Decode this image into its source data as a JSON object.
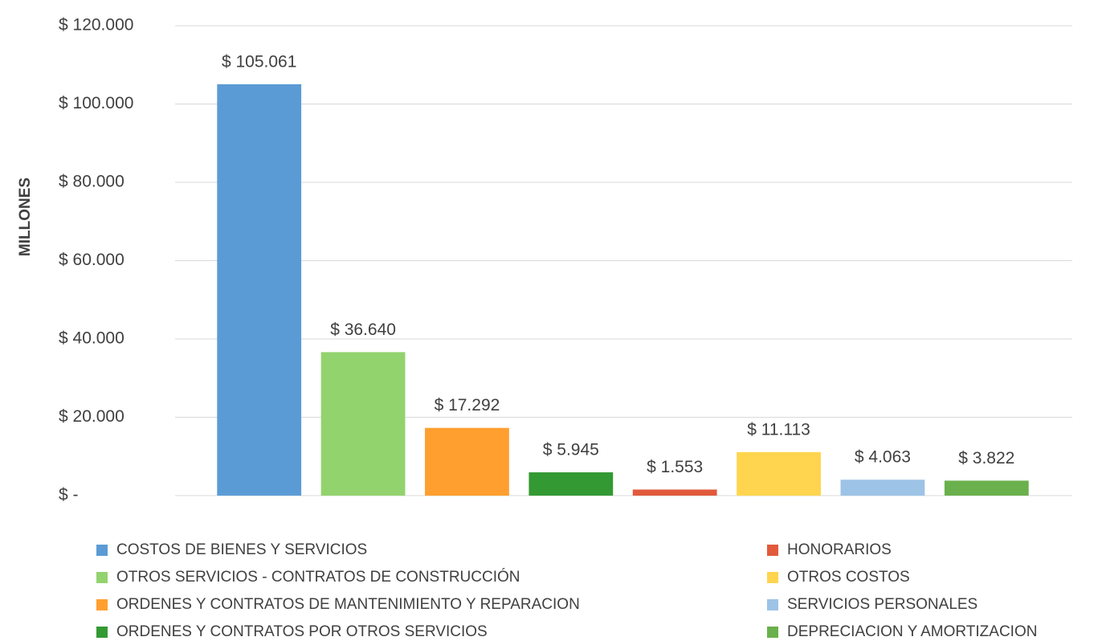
{
  "chart_data": {
    "type": "bar",
    "y_label": "MILLONES",
    "categories": [
      "COSTOS DE BIENES Y SERVICIOS",
      "OTROS SERVICIOS - CONTRATOS DE CONSTRUCCIÓN",
      "ORDENES Y CONTRATOS DE MANTENIMIENTO Y REPARACION",
      "ORDENES Y CONTRATOS POR OTROS SERVICIOS",
      "HONORARIOS",
      "OTROS COSTOS",
      "SERVICIOS PERSONALES",
      "DEPRECIACION Y AMORTIZACION"
    ],
    "values": [
      105061,
      36640,
      17292,
      5945,
      1553,
      11113,
      4063,
      3822
    ],
    "value_labels": [
      "$ 105.061",
      "$ 36.640",
      "$ 17.292",
      "$ 5.945",
      "$ 1.553",
      "$ 11.113",
      "$ 4.063",
      "$ 3.822"
    ],
    "colors": [
      "#5b9bd5",
      "#92d36e",
      "#ff9f2f",
      "#339933",
      "#e15a3c",
      "#ffd54f",
      "#9dc3e6",
      "#6ab04c"
    ],
    "ylim": [
      0,
      120000
    ],
    "yticks": [
      {
        "value": 0,
        "label": "$ -"
      },
      {
        "value": 20000,
        "label": "$ 20.000"
      },
      {
        "value": 40000,
        "label": "$ 40.000"
      },
      {
        "value": 60000,
        "label": "$ 60.000"
      },
      {
        "value": 80000,
        "label": "$ 80.000"
      },
      {
        "value": 100000,
        "label": "$ 100.000"
      },
      {
        "value": 120000,
        "label": "$ 120.000"
      }
    ],
    "grid": true
  }
}
